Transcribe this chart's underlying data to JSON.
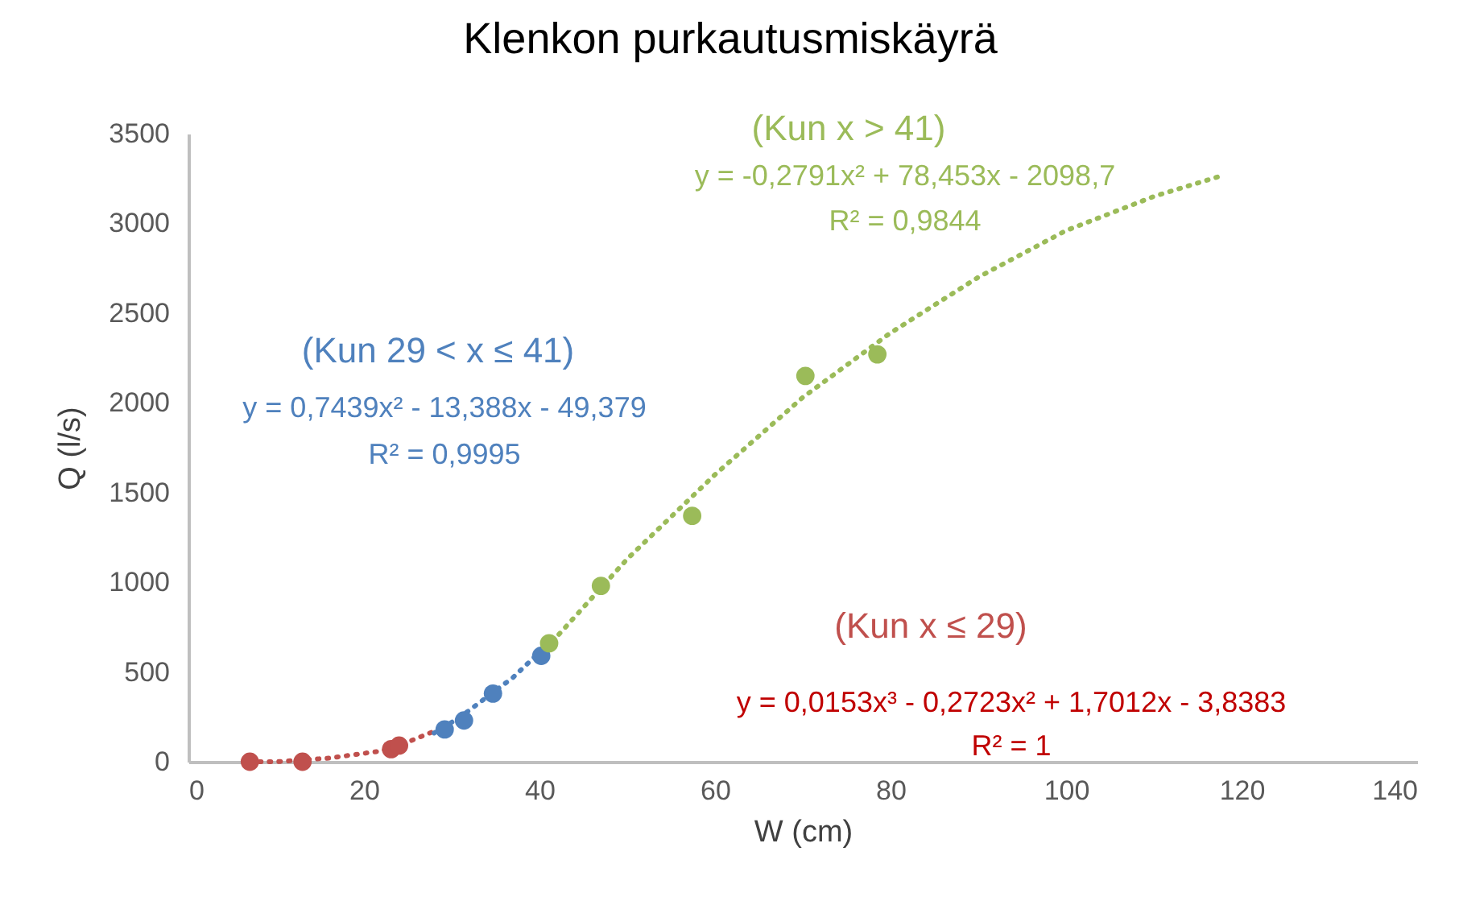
{
  "chart_data": {
    "type": "scatter",
    "title": "Klenkon purkautusmiskäyrä",
    "xlabel": "W (cm)",
    "ylabel": "Q (l/s)",
    "xlim": [
      0,
      140
    ],
    "xticks": [
      0,
      20,
      40,
      60,
      80,
      100,
      120,
      140
    ],
    "ylim": [
      0,
      3500
    ],
    "yticks": [
      0,
      500,
      1000,
      1500,
      2000,
      2500,
      3000,
      3500
    ],
    "marker": "circle",
    "series": [
      {
        "type": "line",
        "color": "#c0504d",
        "line_style": "dotted",
        "marker": "none",
        "x": [
          7,
          10,
          13,
          16,
          19,
          22,
          25,
          28,
          29
        ],
        "values": [
          0,
          0,
          10,
          20,
          40,
          60,
          110,
          170,
          190
        ]
      },
      {
        "type": "line",
        "color": "#4f81bd",
        "line_style": "dotted",
        "marker": "none",
        "x": [
          28,
          31,
          34,
          37,
          40,
          41
        ],
        "values": [
          160,
          250,
          360,
          470,
          610,
          650
        ]
      },
      {
        "type": "line",
        "color": "#9bbb59",
        "line_style": "dotted",
        "marker": "none",
        "x": [
          40,
          50,
          60,
          70,
          80,
          90,
          100,
          110,
          118
        ],
        "values": [
          590,
          1130,
          1600,
          2030,
          2390,
          2700,
          2960,
          3150,
          3270
        ]
      },
      {
        "type": "scatter",
        "color": "#c0504d",
        "x": [
          7,
          13,
          23.1,
          24
        ],
        "values": [
          0,
          0,
          70,
          90
        ]
      },
      {
        "type": "scatter",
        "color": "#4f81bd",
        "x": [
          29.2,
          31.4,
          34.7,
          40.2
        ],
        "values": [
          180,
          230,
          380,
          590
        ]
      },
      {
        "type": "scatter",
        "color": "#9bbb59",
        "x": [
          41.1,
          47,
          57.4,
          70.3,
          78.5
        ],
        "values": [
          660,
          980,
          1370,
          2150,
          2270
        ]
      }
    ],
    "annotations": [
      "(Kun x > 41)",
      "y = -0,2791x² + 78,453x - 2098,7",
      "R² = 0,9844",
      "(Kun 29 < x ≤ 41)",
      "y = 0,7439x² - 13,388x - 49,379",
      "R² = 0,9995",
      "(Kun x ≤ 29)",
      "y = 0,0153x³ - 0,2723x² + 1,7012x - 3,8383",
      "R² = 1"
    ]
  }
}
